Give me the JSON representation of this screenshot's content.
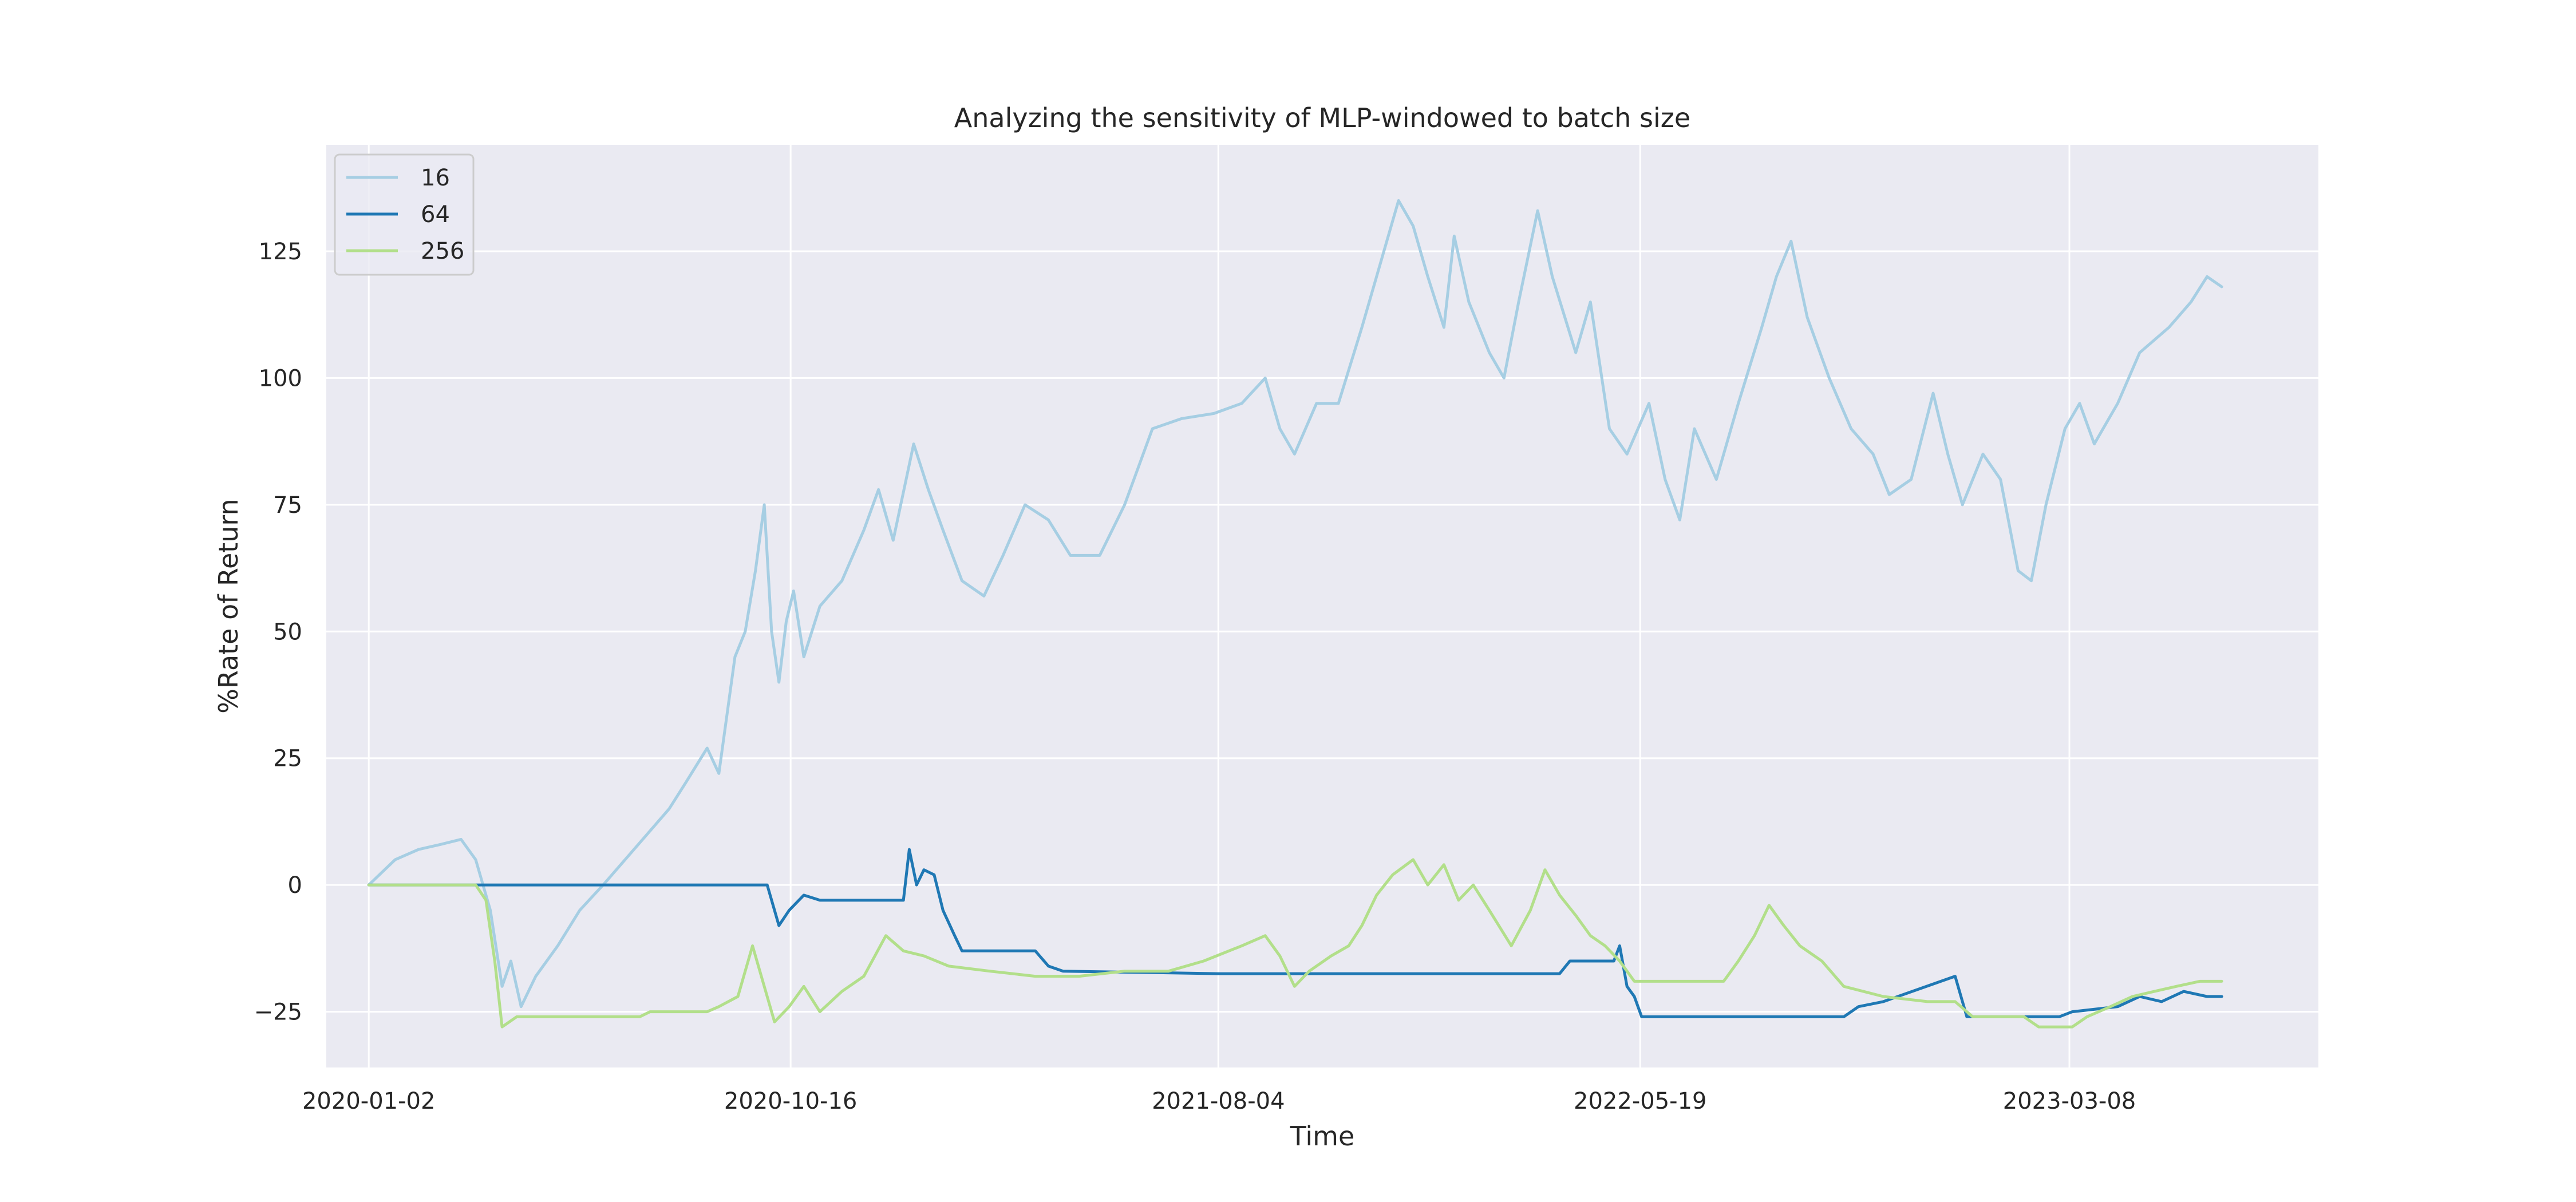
{
  "chart_data": {
    "type": "line",
    "title": "Analyzing the sensitivity of MLP-windowed to batch size",
    "xlabel": "Time",
    "ylabel": "%Rate of Return",
    "x_ticks": [
      "2020-01-02",
      "2020-10-16",
      "2021-08-04",
      "2022-05-19",
      "2023-03-08"
    ],
    "y_ticks": [
      -25,
      0,
      25,
      50,
      75,
      100,
      125
    ],
    "xlim": [
      "2019-12-04",
      "2023-08-25"
    ],
    "ylim": [
      -36,
      146
    ],
    "grid": true,
    "legend_position": "top-left",
    "series": [
      {
        "name": "16",
        "color": "#a6cee3",
        "points": [
          [
            "2020-01-02",
            0
          ],
          [
            "2020-01-20",
            5
          ],
          [
            "2020-02-05",
            7
          ],
          [
            "2020-02-20",
            8
          ],
          [
            "2020-03-05",
            9
          ],
          [
            "2020-03-15",
            5
          ],
          [
            "2020-03-25",
            -5
          ],
          [
            "2020-04-02",
            -20
          ],
          [
            "2020-04-08",
            -15
          ],
          [
            "2020-04-15",
            -24
          ],
          [
            "2020-04-25",
            -18
          ],
          [
            "2020-05-10",
            -12
          ],
          [
            "2020-05-25",
            -5
          ],
          [
            "2020-06-10",
            0
          ],
          [
            "2020-06-25",
            5
          ],
          [
            "2020-07-10",
            10
          ],
          [
            "2020-07-25",
            15
          ],
          [
            "2020-08-05",
            20
          ],
          [
            "2020-08-20",
            27
          ],
          [
            "2020-08-28",
            22
          ],
          [
            "2020-09-08",
            45
          ],
          [
            "2020-09-15",
            50
          ],
          [
            "2020-09-22",
            62
          ],
          [
            "2020-09-28",
            75
          ],
          [
            "2020-10-03",
            50
          ],
          [
            "2020-10-08",
            40
          ],
          [
            "2020-10-13",
            52
          ],
          [
            "2020-10-18",
            58
          ],
          [
            "2020-10-25",
            45
          ],
          [
            "2020-11-05",
            55
          ],
          [
            "2020-11-20",
            60
          ],
          [
            "2020-12-05",
            70
          ],
          [
            "2020-12-15",
            78
          ],
          [
            "2020-12-25",
            68
          ],
          [
            "2021-01-08",
            87
          ],
          [
            "2021-01-18",
            78
          ],
          [
            "2021-01-28",
            70
          ],
          [
            "2021-02-10",
            60
          ],
          [
            "2021-02-25",
            57
          ],
          [
            "2021-03-10",
            65
          ],
          [
            "2021-03-25",
            75
          ],
          [
            "2021-04-10",
            72
          ],
          [
            "2021-04-25",
            65
          ],
          [
            "2021-05-15",
            65
          ],
          [
            "2021-06-01",
            75
          ],
          [
            "2021-06-20",
            90
          ],
          [
            "2021-07-10",
            92
          ],
          [
            "2021-08-01",
            93
          ],
          [
            "2021-08-20",
            95
          ],
          [
            "2021-09-05",
            100
          ],
          [
            "2021-09-15",
            90
          ],
          [
            "2021-09-25",
            85
          ],
          [
            "2021-10-10",
            95
          ],
          [
            "2021-10-25",
            95
          ],
          [
            "2021-11-10",
            110
          ],
          [
            "2021-11-25",
            125
          ],
          [
            "2021-12-05",
            135
          ],
          [
            "2021-12-15",
            130
          ],
          [
            "2021-12-25",
            120
          ],
          [
            "2022-01-05",
            110
          ],
          [
            "2022-01-12",
            128
          ],
          [
            "2022-01-22",
            115
          ],
          [
            "2022-02-05",
            105
          ],
          [
            "2022-02-15",
            100
          ],
          [
            "2022-02-25",
            115
          ],
          [
            "2022-03-10",
            133
          ],
          [
            "2022-03-20",
            120
          ],
          [
            "2022-04-05",
            105
          ],
          [
            "2022-04-15",
            115
          ],
          [
            "2022-04-28",
            90
          ],
          [
            "2022-05-10",
            85
          ],
          [
            "2022-05-25",
            95
          ],
          [
            "2022-06-05",
            80
          ],
          [
            "2022-06-15",
            72
          ],
          [
            "2022-06-25",
            90
          ],
          [
            "2022-07-10",
            80
          ],
          [
            "2022-07-25",
            95
          ],
          [
            "2022-08-10",
            110
          ],
          [
            "2022-08-20",
            120
          ],
          [
            "2022-08-30",
            127
          ],
          [
            "2022-09-10",
            112
          ],
          [
            "2022-09-25",
            100
          ],
          [
            "2022-10-10",
            90
          ],
          [
            "2022-10-25",
            85
          ],
          [
            "2022-11-05",
            77
          ],
          [
            "2022-11-20",
            80
          ],
          [
            "2022-12-05",
            97
          ],
          [
            "2022-12-15",
            85
          ],
          [
            "2022-12-25",
            75
          ],
          [
            "2023-01-08",
            85
          ],
          [
            "2023-01-20",
            80
          ],
          [
            "2023-02-01",
            62
          ],
          [
            "2023-02-10",
            60
          ],
          [
            "2023-02-20",
            75
          ],
          [
            "2023-03-05",
            90
          ],
          [
            "2023-03-15",
            95
          ],
          [
            "2023-03-25",
            87
          ],
          [
            "2023-04-10",
            95
          ],
          [
            "2023-04-25",
            105
          ],
          [
            "2023-05-15",
            110
          ],
          [
            "2023-05-30",
            115
          ],
          [
            "2023-06-10",
            120
          ],
          [
            "2023-06-20",
            118
          ]
        ]
      },
      {
        "name": "64",
        "color": "#1f78b4",
        "points": [
          [
            "2020-01-02",
            0
          ],
          [
            "2020-09-30",
            0
          ],
          [
            "2020-10-03",
            -3
          ],
          [
            "2020-10-08",
            -8
          ],
          [
            "2020-10-15",
            -5
          ],
          [
            "2020-10-25",
            -2
          ],
          [
            "2020-11-05",
            -3
          ],
          [
            "2020-12-10",
            -3
          ],
          [
            "2021-01-01",
            -3
          ],
          [
            "2021-01-05",
            7
          ],
          [
            "2021-01-10",
            0
          ],
          [
            "2021-01-15",
            3
          ],
          [
            "2021-01-22",
            2
          ],
          [
            "2021-01-28",
            -5
          ],
          [
            "2021-02-05",
            -10
          ],
          [
            "2021-02-10",
            -13
          ],
          [
            "2021-04-01",
            -13
          ],
          [
            "2021-04-10",
            -16
          ],
          [
            "2021-04-20",
            -17
          ],
          [
            "2021-08-04",
            -17.5
          ],
          [
            "2022-03-25",
            -17.5
          ],
          [
            "2022-04-01",
            -15
          ],
          [
            "2022-05-01",
            -15
          ],
          [
            "2022-05-05",
            -12
          ],
          [
            "2022-05-10",
            -20
          ],
          [
            "2022-05-15",
            -22
          ],
          [
            "2022-05-20",
            -26
          ],
          [
            "2022-10-05",
            -26
          ],
          [
            "2022-10-15",
            -24
          ],
          [
            "2022-11-01",
            -23
          ],
          [
            "2022-12-20",
            -18
          ],
          [
            "2022-12-28",
            -26
          ],
          [
            "2023-03-01",
            -26
          ],
          [
            "2023-03-10",
            -25
          ],
          [
            "2023-04-10",
            -24
          ],
          [
            "2023-04-25",
            -22
          ],
          [
            "2023-05-10",
            -23
          ],
          [
            "2023-05-25",
            -21
          ],
          [
            "2023-06-10",
            -22
          ],
          [
            "2023-06-20",
            -22
          ]
        ]
      },
      {
        "name": "256",
        "color": "#b2df8a",
        "points": [
          [
            "2020-01-02",
            0
          ],
          [
            "2020-03-15",
            0
          ],
          [
            "2020-03-22",
            -3
          ],
          [
            "2020-03-28",
            -15
          ],
          [
            "2020-04-02",
            -28
          ],
          [
            "2020-04-12",
            -26
          ],
          [
            "2020-07-05",
            -26
          ],
          [
            "2020-07-12",
            -25
          ],
          [
            "2020-08-20",
            -25
          ],
          [
            "2020-08-28",
            -24
          ],
          [
            "2020-09-10",
            -22
          ],
          [
            "2020-09-20",
            -12
          ],
          [
            "2020-09-28",
            -20
          ],
          [
            "2020-10-05",
            -27
          ],
          [
            "2020-10-15",
            -24
          ],
          [
            "2020-10-25",
            -20
          ],
          [
            "2020-11-05",
            -25
          ],
          [
            "2020-11-20",
            -21
          ],
          [
            "2020-12-05",
            -18
          ],
          [
            "2020-12-20",
            -10
          ],
          [
            "2021-01-01",
            -13
          ],
          [
            "2021-01-15",
            -14
          ],
          [
            "2021-02-01",
            -16
          ],
          [
            "2021-03-01",
            -17
          ],
          [
            "2021-04-01",
            -18
          ],
          [
            "2021-05-01",
            -18
          ],
          [
            "2021-06-01",
            -17
          ],
          [
            "2021-07-01",
            -17
          ],
          [
            "2021-07-25",
            -15
          ],
          [
            "2021-08-20",
            -12
          ],
          [
            "2021-09-05",
            -10
          ],
          [
            "2021-09-15",
            -14
          ],
          [
            "2021-09-25",
            -20
          ],
          [
            "2021-10-05",
            -17
          ],
          [
            "2021-10-20",
            -14
          ],
          [
            "2021-11-01",
            -12
          ],
          [
            "2021-11-10",
            -8
          ],
          [
            "2021-11-20",
            -2
          ],
          [
            "2021-12-01",
            2
          ],
          [
            "2021-12-15",
            5
          ],
          [
            "2021-12-25",
            0
          ],
          [
            "2022-01-05",
            4
          ],
          [
            "2022-01-15",
            -3
          ],
          [
            "2022-01-25",
            0
          ],
          [
            "2022-02-05",
            -5
          ],
          [
            "2022-02-20",
            -12
          ],
          [
            "2022-03-05",
            -5
          ],
          [
            "2022-03-15",
            3
          ],
          [
            "2022-03-25",
            -2
          ],
          [
            "2022-04-05",
            -6
          ],
          [
            "2022-04-15",
            -10
          ],
          [
            "2022-04-25",
            -12
          ],
          [
            "2022-05-05",
            -15
          ],
          [
            "2022-05-15",
            -19
          ],
          [
            "2022-07-15",
            -19
          ],
          [
            "2022-07-25",
            -15
          ],
          [
            "2022-08-05",
            -10
          ],
          [
            "2022-08-15",
            -4
          ],
          [
            "2022-08-25",
            -8
          ],
          [
            "2022-09-05",
            -12
          ],
          [
            "2022-09-20",
            -15
          ],
          [
            "2022-10-05",
            -20
          ],
          [
            "2022-11-01",
            -22
          ],
          [
            "2022-12-01",
            -23
          ],
          [
            "2022-12-20",
            -23
          ],
          [
            "2023-01-01",
            -26
          ],
          [
            "2023-02-05",
            -26
          ],
          [
            "2023-02-15",
            -28
          ],
          [
            "2023-03-10",
            -28
          ],
          [
            "2023-03-20",
            -26
          ],
          [
            "2023-04-05",
            -24
          ],
          [
            "2023-04-20",
            -22
          ],
          [
            "2023-05-05",
            -21
          ],
          [
            "2023-05-20",
            -20
          ],
          [
            "2023-06-05",
            -19
          ],
          [
            "2023-06-20",
            -19
          ]
        ]
      }
    ]
  }
}
